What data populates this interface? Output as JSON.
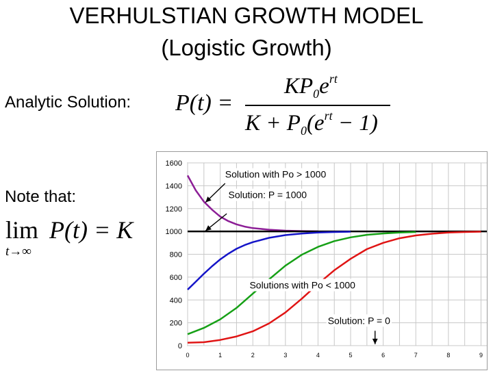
{
  "slide": {
    "title_line1": "VERHULSTIAN GROWTH MODEL",
    "title_line2": "(Logistic Growth)",
    "analytic_label": "Analytic Solution:",
    "note_label": "Note that:"
  },
  "formula": {
    "lhs": "P(t) =",
    "num_K": "KP",
    "num_sub": "0",
    "num_e": "e",
    "num_sup": "rt",
    "den_pre": "K + P",
    "den_sub": "0",
    "den_mid": "(e",
    "den_sup": "rt",
    "den_post": " − 1)",
    "limit_word": "lim",
    "limit_sub": "t→∞",
    "limit_expr": "P(t) = K"
  },
  "colors": {
    "blue": "#1414c8",
    "green": "#16a016",
    "red": "#e01414",
    "purple": "#8c1e96",
    "black": "#000000",
    "grid": "#c8c8c8"
  },
  "chart_data": {
    "type": "line",
    "xlim": [
      0,
      9.2
    ],
    "ylim": [
      0,
      1600
    ],
    "x_ticks": [
      "0",
      "0.5",
      "1",
      "1.5",
      "2",
      "2.5",
      "3",
      "3.5",
      "4",
      "4.5",
      "5",
      "5.5",
      "6",
      "6.5",
      "7",
      "7.5",
      "8",
      "8.5",
      "9"
    ],
    "y_ticks": [
      "0",
      "200",
      "400",
      "600",
      "800",
      "1000",
      "1200",
      "1400",
      "1600"
    ],
    "grid": true,
    "series": [
      {
        "color": "purple",
        "x": [
          0,
          0.25,
          0.5,
          0.75,
          1,
          1.25,
          1.5,
          1.75,
          2,
          2.5,
          3,
          3.5,
          4
        ],
        "y": [
          1490,
          1360,
          1260,
          1190,
          1130,
          1090,
          1062,
          1042,
          1029,
          1015,
          1007,
          1003,
          1001
        ]
      },
      {
        "color": "black",
        "x": [
          0,
          9.2
        ],
        "y": [
          1000,
          1000
        ]
      },
      {
        "color": "blue",
        "x": [
          0,
          0.25,
          0.5,
          0.75,
          1,
          1.25,
          1.5,
          1.75,
          2,
          2.5,
          3,
          3.5,
          4,
          4.5,
          5
        ],
        "y": [
          490,
          560,
          630,
          695,
          755,
          805,
          848,
          880,
          906,
          944,
          968,
          981,
          990,
          995,
          998
        ]
      },
      {
        "color": "green",
        "x": [
          0,
          0.5,
          1,
          1.5,
          2,
          2.5,
          3,
          3.5,
          4,
          4.5,
          5,
          5.5,
          6,
          6.5,
          7
        ],
        "y": [
          100,
          155,
          230,
          330,
          455,
          580,
          700,
          795,
          865,
          915,
          948,
          970,
          982,
          990,
          995
        ]
      },
      {
        "color": "red",
        "x": [
          0,
          0.5,
          1,
          1.5,
          2,
          2.5,
          3,
          3.5,
          4,
          4.5,
          5,
          5.5,
          6,
          6.5,
          7,
          7.5,
          8,
          8.5,
          9
        ],
        "y": [
          25,
          30,
          50,
          80,
          125,
          195,
          290,
          410,
          540,
          660,
          760,
          845,
          900,
          940,
          965,
          980,
          990,
          995,
          998
        ]
      }
    ],
    "annotations": [
      {
        "text": "Solution with  Po > 1000",
        "x": 1.15,
        "y": 1470
      },
      {
        "text": "Solution: P = 1000",
        "x": 1.25,
        "y": 1290
      },
      {
        "text": "Solutions with  Po < 1000",
        "x": 1.9,
        "y": 500
      },
      {
        "text": "Solution: P = 0",
        "x": 4.3,
        "y": 190
      }
    ],
    "arrows": [
      {
        "from": [
          1.15,
          1420
        ],
        "to": [
          0.55,
          1255
        ]
      },
      {
        "from": [
          1.2,
          1155
        ],
        "to": [
          0.55,
          1005
        ]
      },
      {
        "from": [
          5.75,
          130
        ],
        "to": [
          5.75,
          12
        ]
      }
    ]
  }
}
